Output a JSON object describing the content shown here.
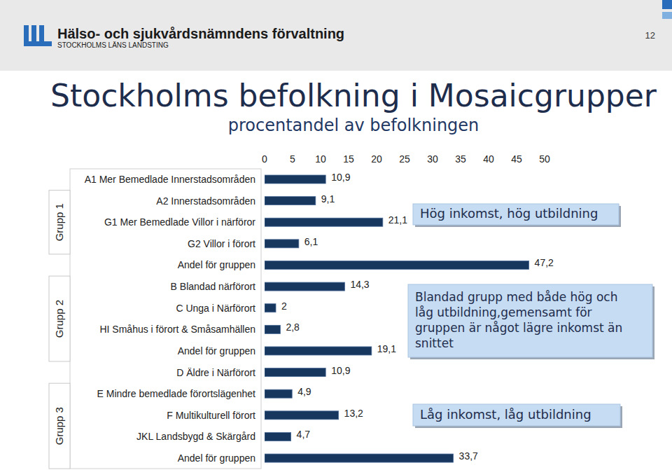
{
  "header": {
    "organization": "Hälso- och sjukvårdsnämndens förvaltning",
    "county": "STOCKHOLMS LÄNS LANDSTING",
    "page_number": 12
  },
  "chart_data": {
    "type": "bar",
    "orientation": "horizontal",
    "title": "Stockholms befolkning i Mosaicgrupper",
    "subtitle": "procentandel av befolkningen",
    "categories": [
      "A1 Mer Bemedlade Innerstadsområden",
      "A2 Innerstadsområden",
      "G1 Mer Bemedlade Villor i närföror",
      "G2 Villor i förort",
      "Andel för gruppen",
      "B Blandad närförort",
      "C Unga i Närförort",
      "HI Småhus i förort & Småsamhällen",
      "Andel för gruppen",
      "D Äldre i Närförort",
      "E Mindre bemedlade förortslägenhet",
      "F Multikulturell förort",
      "JKL Landsbygd & Skärgård",
      "Andel för gruppen"
    ],
    "values": [
      10.9,
      9.1,
      21.1,
      6.1,
      47.2,
      14.3,
      2,
      2.8,
      19.1,
      10.9,
      4.9,
      13.2,
      4.7,
      33.7
    ],
    "value_labels": [
      "10,9",
      "9,1",
      "21,1",
      "6,1",
      "47,2",
      "14,3",
      "2",
      "2,8",
      "19,1",
      "10,9",
      "4,9",
      "13,2",
      "4,7",
      "33,7"
    ],
    "data_labels": true,
    "color": "#17375e",
    "xlim": [
      0,
      50
    ],
    "xticks": [
      0,
      5,
      10,
      15,
      20,
      25,
      30,
      35,
      40,
      45,
      50
    ],
    "grid": false,
    "groups": [
      {
        "label": "Grupp 1",
        "annotation": [
          "Hög inkomst, hög utbildning"
        ]
      },
      {
        "label": "Grupp 2",
        "annotation": [
          "Blandad grupp med både hög och",
          "låg utbildning,gemensamt för",
          "gruppen är något lägre inkomst än",
          "snittet"
        ]
      },
      {
        "label": "Grupp 3",
        "annotation": [
          "Låg inkomst, låg utbildning"
        ]
      }
    ]
  }
}
